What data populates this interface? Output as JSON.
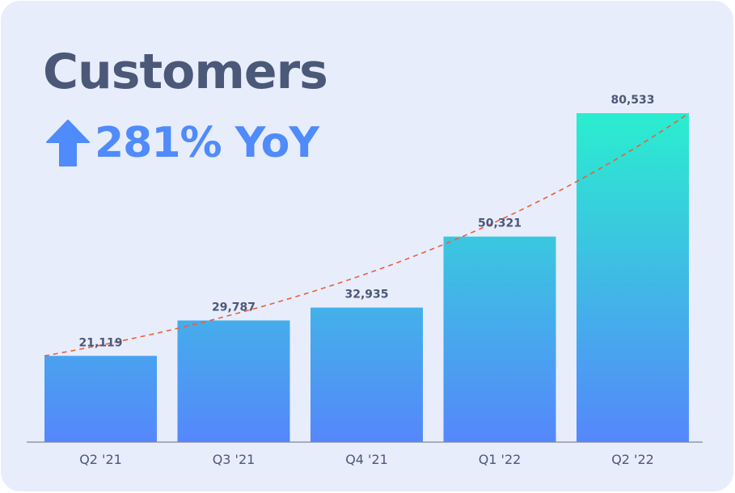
{
  "card": {
    "title": "Customers",
    "subtitle": "281% YoY",
    "subtitle_icon": "up-arrow-icon"
  },
  "colors": {
    "title": "#4b5878",
    "accent": "#4f8bfa",
    "bar_top": "#2aeecf",
    "bar_bottom": "#5587fb",
    "trend_line": "#e8603c",
    "background": "#e8edfc"
  },
  "chart_data": {
    "type": "bar",
    "categories": [
      "Q2 '21",
      "Q3 '21",
      "Q4 '21",
      "Q1 '22",
      "Q2 '22"
    ],
    "values": [
      21119,
      29787,
      32935,
      50321,
      80533
    ],
    "value_labels": [
      "21,119",
      "29,787",
      "32,935",
      "50,321",
      "80,533"
    ],
    "title": "Customers",
    "subtitle": "281% YoY",
    "xlabel": "",
    "ylabel": "",
    "ylim": [
      0,
      80533
    ],
    "grid": false,
    "legend": "none",
    "trend_line": "exponential, dashed"
  }
}
